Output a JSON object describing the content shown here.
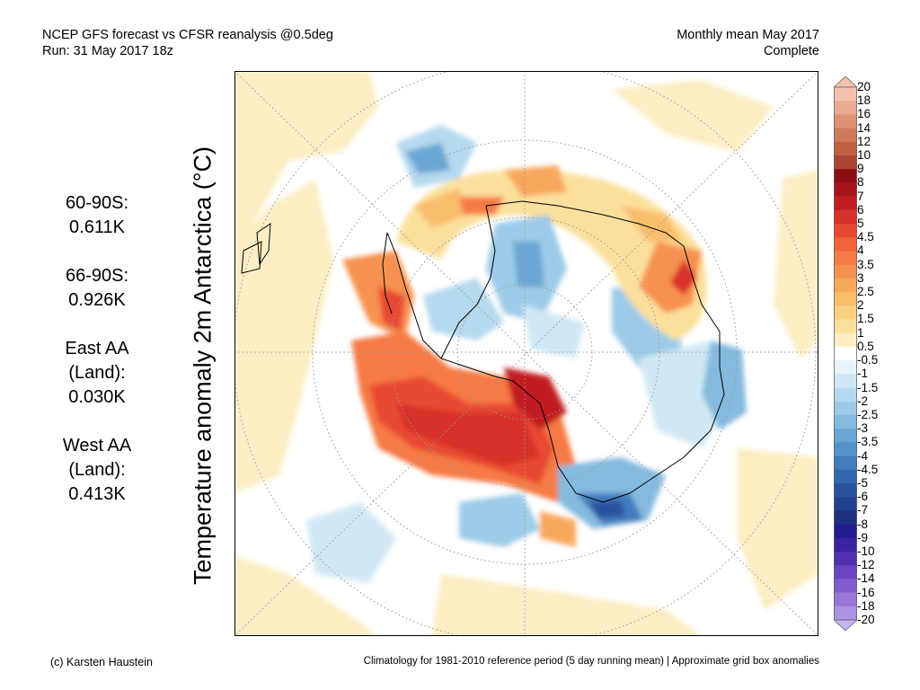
{
  "header": {
    "line1_left": "NCEP GFS forecast vs CFSR reanalysis @0.5deg",
    "line2_left": "Run: 31 May 2017 18z",
    "line1_right": "Monthly mean May 2017",
    "line2_right": "Complete"
  },
  "stats": [
    {
      "lines": [
        "60-90S:",
        "0.611K"
      ]
    },
    {
      "lines": [
        "66-90S:",
        "0.926K"
      ]
    },
    {
      "lines": [
        "East AA",
        "(Land):",
        "0.030K"
      ]
    },
    {
      "lines": [
        "West AA",
        "(Land):",
        "0.413K"
      ]
    }
  ],
  "map": {
    "ylabel": "Temperature anomaly 2m Antarctica (°C)",
    "projection": "south-polar-stereographic",
    "graticule": "dotted"
  },
  "colorbar": {
    "unit": "°C",
    "extend": "both",
    "levels": [
      {
        "label": "20",
        "color": "#f2c2ad"
      },
      {
        "label": "18",
        "color": "#e9ab92"
      },
      {
        "label": "16",
        "color": "#dd9273"
      },
      {
        "label": "14",
        "color": "#cf7a5a"
      },
      {
        "label": "12",
        "color": "#c06143"
      },
      {
        "label": "10",
        "color": "#a94634"
      },
      {
        "label": "9",
        "color": "#8c0d14"
      },
      {
        "label": "8",
        "color": "#a8141c"
      },
      {
        "label": "7",
        "color": "#c21d22"
      },
      {
        "label": "6",
        "color": "#d8302a"
      },
      {
        "label": "5",
        "color": "#e84a31"
      },
      {
        "label": "4.5",
        "color": "#f1623a"
      },
      {
        "label": "4",
        "color": "#f57a45"
      },
      {
        "label": "3.5",
        "color": "#f7914f"
      },
      {
        "label": "3",
        "color": "#f8a85d"
      },
      {
        "label": "2.5",
        "color": "#f9bd6c"
      },
      {
        "label": "2",
        "color": "#fad080"
      },
      {
        "label": "1.5",
        "color": "#fbe09c"
      },
      {
        "label": "1",
        "color": "#fcedc2"
      },
      {
        "label": "0.5",
        "color": "#ffffff"
      },
      {
        "label": "-0.5",
        "color": "#e6f3fb"
      },
      {
        "label": "-1",
        "color": "#d0e8f5"
      },
      {
        "label": "-1.5",
        "color": "#b5d9ee"
      },
      {
        "label": "-2",
        "color": "#9dcbe7"
      },
      {
        "label": "-2.5",
        "color": "#84bade"
      },
      {
        "label": "-3",
        "color": "#6aa6d4"
      },
      {
        "label": "-3.5",
        "color": "#5592c9"
      },
      {
        "label": "-4",
        "color": "#427cbd"
      },
      {
        "label": "-4.5",
        "color": "#3466ae"
      },
      {
        "label": "-5",
        "color": "#2a539e"
      },
      {
        "label": "-6",
        "color": "#22408f"
      },
      {
        "label": "-7",
        "color": "#1e2f80"
      },
      {
        "label": "-8",
        "color": "#231c8c"
      },
      {
        "label": "-9",
        "color": "#3b22a0"
      },
      {
        "label": "-10",
        "color": "#5230b0"
      },
      {
        "label": "-12",
        "color": "#6a45c0"
      },
      {
        "label": "-14",
        "color": "#805dcd"
      },
      {
        "label": "-16",
        "color": "#9777d8"
      },
      {
        "label": "-18",
        "color": "#ae93e2"
      },
      {
        "label": "-20",
        "color": "#c7b3ee"
      }
    ]
  },
  "footer": {
    "left": "(c) Karsten Haustein",
    "right": "Climatology for 1981-2010 reference period (5 day running mean) | Approximate grid box anomalies"
  }
}
